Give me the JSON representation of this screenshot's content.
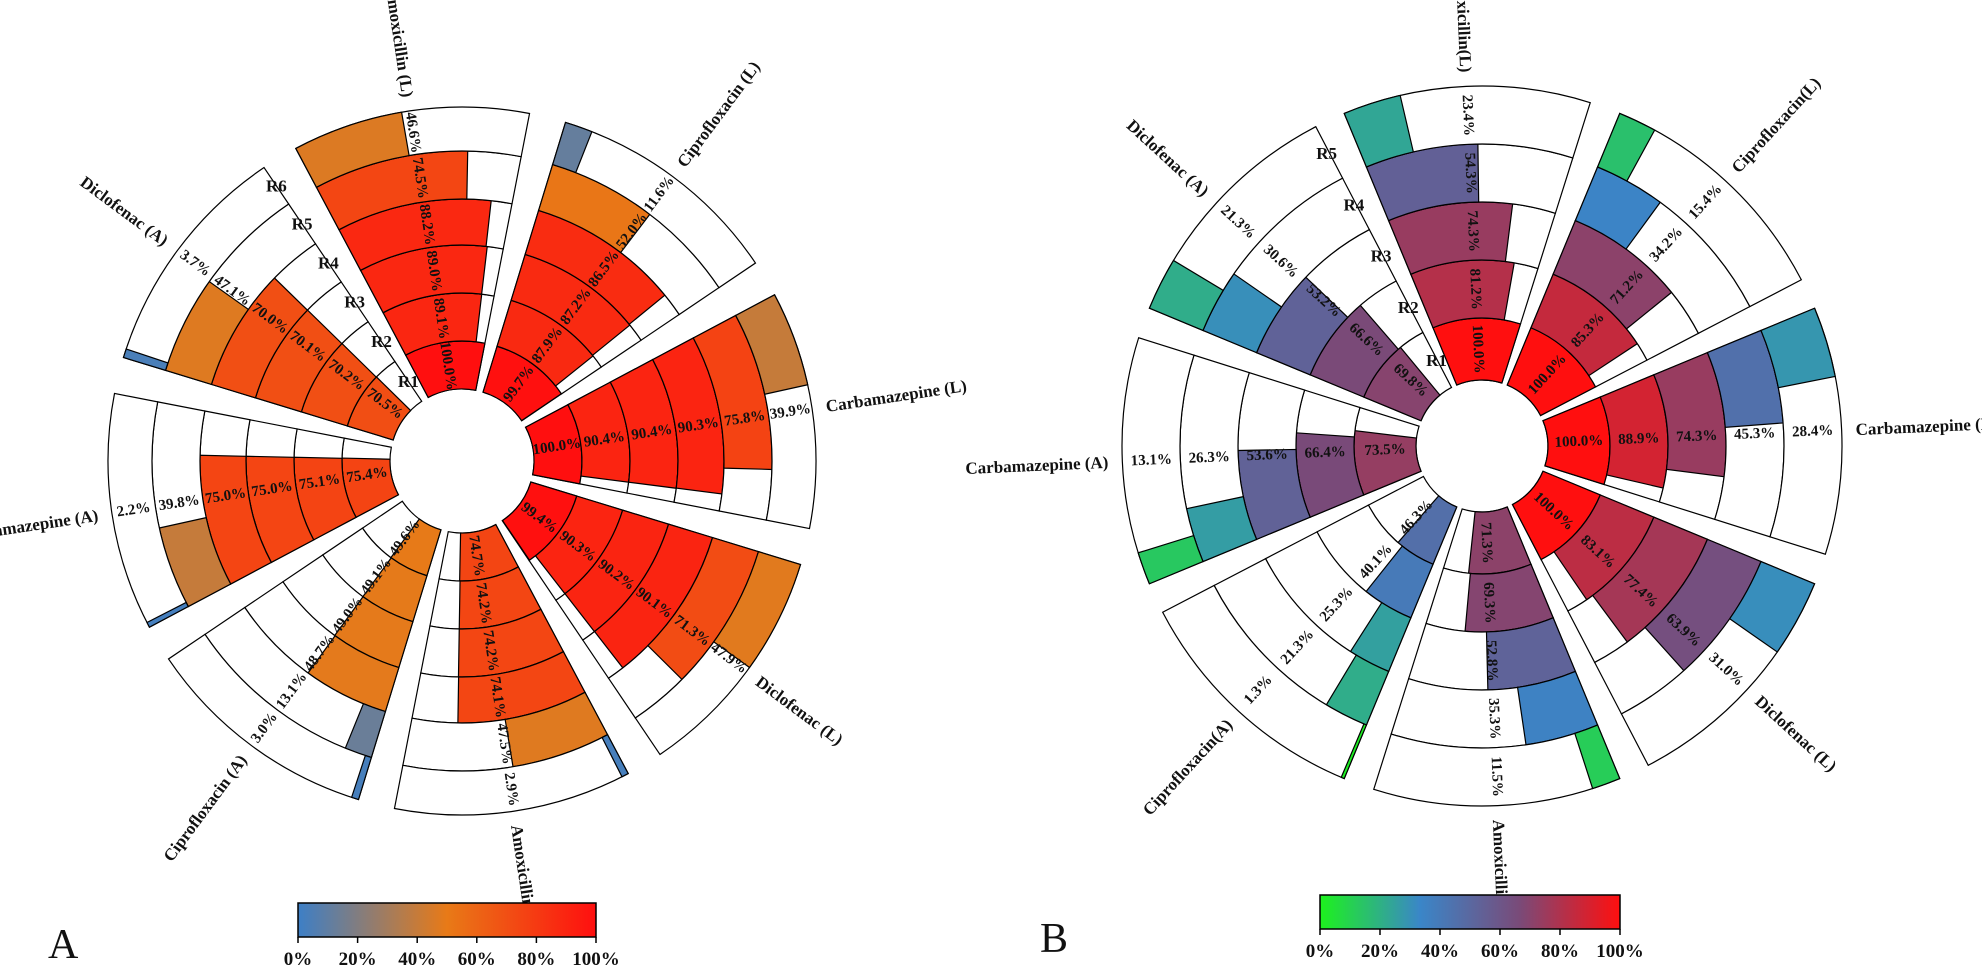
{
  "chart_data": [
    {
      "type": "radial-bar",
      "panel": "A",
      "rings": [
        "R1",
        "R2",
        "R3",
        "R4",
        "R5",
        "R6"
      ],
      "colorbar": {
        "stops": [
          "#3d7fc6",
          "#e87a17",
          "#ff0f0f"
        ],
        "ticks": [
          "0%",
          "20%",
          "40%",
          "60%",
          "80%",
          "100%"
        ]
      },
      "sectors": [
        {
          "label": "Amoxicillin (L)",
          "values": [
            100.0,
            89.1,
            89.0,
            88.2,
            74.5,
            46.6
          ],
          "text": [
            "100.0%",
            "89.1%",
            "89.0%",
            "88.2%",
            "74.5%",
            "46.6%"
          ]
        },
        {
          "label": "Ciprofloxacin (L)",
          "values": [
            99.7,
            87.9,
            87.2,
            86.5,
            52.0,
            11.6
          ],
          "text": [
            "99.7%",
            "87.9%",
            "87.2%",
            "86.5%",
            "52.0%",
            "11.6%"
          ]
        },
        {
          "label": "Carbamazepine (L)",
          "values": [
            100.0,
            90.4,
            90.4,
            90.3,
            75.8,
            39.9
          ],
          "text": [
            "100.0%",
            "90.4%",
            "90.4%",
            "90.3%",
            "75.8%",
            "39.9%"
          ]
        },
        {
          "label": "Diclofenac (L)",
          "values": [
            99.4,
            90.3,
            90.2,
            90.1,
            71.3,
            47.9
          ],
          "text": [
            "99.4%",
            "90.3%",
            "90.2%",
            "90.1%",
            "71.3%",
            "47.9%"
          ]
        },
        {
          "label": "Amoxicillin (A)",
          "values": [
            74.7,
            74.2,
            74.2,
            74.1,
            47.5,
            2.9
          ],
          "text": [
            "74.7%",
            "74.2%",
            "74.2%",
            "74.1%",
            "47.5%",
            "2.9%"
          ]
        },
        {
          "label": "Ciprofloxacin (A)",
          "values": [
            49.6,
            49.1,
            49.0,
            48.7,
            13.1,
            3.0
          ],
          "text": [
            "49.6%",
            "49.1%",
            "49.0%",
            "48.7%",
            "13.1%",
            "3.0%"
          ]
        },
        {
          "label": "Carbamazepine (A)",
          "values": [
            75.4,
            75.1,
            75.0,
            75.0,
            39.8,
            2.2
          ],
          "text": [
            "75.4%",
            "75.1%",
            "75.0%",
            "75.0%",
            "39.8%",
            "2.2%"
          ]
        },
        {
          "label": "Diclofenac (A)",
          "values": [
            70.5,
            70.2,
            70.1,
            70.0,
            47.1,
            3.7
          ],
          "text": [
            "70.5%",
            "70.2%",
            "70.1%",
            "70.0%",
            "47.1%",
            "3.7%"
          ]
        }
      ]
    },
    {
      "type": "radial-bar",
      "panel": "B",
      "rings": [
        "R1",
        "R2",
        "R3",
        "R4",
        "R5"
      ],
      "colorbar": {
        "stops": [
          "#1df21d",
          "#3a86c8",
          "#7a4a78",
          "#ff0f0f"
        ],
        "ticks": [
          "0%",
          "20%",
          "40%",
          "60%",
          "80%",
          "100%"
        ]
      },
      "sectors": [
        {
          "label": "Amoxicillin(L)",
          "values": [
            100.0,
            81.2,
            74.3,
            54.3,
            23.4
          ],
          "text": [
            "100.0%",
            "81.2%",
            "74.3%",
            "54.3%",
            "23.4%"
          ]
        },
        {
          "label": "Ciprofloxacin(L)",
          "values": [
            100.0,
            85.3,
            71.2,
            34.2,
            15.4
          ],
          "text": [
            "100.0%",
            "85.3%",
            "71.2%",
            "34.2%",
            "15.4%"
          ]
        },
        {
          "label": "Carbamazepine (L)",
          "values": [
            100.0,
            88.9,
            74.3,
            45.3,
            28.4
          ],
          "text": [
            "100.0%",
            "88.9%",
            "74.3%",
            "45.3%",
            "28.4%"
          ]
        },
        {
          "label": "Diclofenac (L)",
          "values": [
            100.0,
            83.1,
            77.4,
            63.9,
            31.0
          ],
          "text": [
            "100.0%",
            "83.1%",
            "77.4%",
            "63.9%",
            "31.0%"
          ]
        },
        {
          "label": "Amoxicillin(A)",
          "values": [
            71.3,
            69.3,
            52.8,
            35.3,
            11.5
          ],
          "text": [
            "71.3%",
            "69.3%",
            "52.8%",
            "35.3%",
            "11.5%"
          ]
        },
        {
          "label": "Ciprofloxacin(A)",
          "values": [
            46.3,
            40.1,
            25.3,
            21.3,
            1.3
          ],
          "text": [
            "46.3%",
            "40.1%",
            "25.3%",
            "21.3%",
            "1.3%"
          ]
        },
        {
          "label": "Carbamazepine (A)",
          "values": [
            73.5,
            66.4,
            53.6,
            26.3,
            13.1
          ],
          "text": [
            "73.5%",
            "66.4%",
            "53.6%",
            "26.3%",
            "13.1%"
          ]
        },
        {
          "label": "Diclofenac (A)",
          "values": [
            69.8,
            66.6,
            53.2,
            30.6,
            21.3
          ],
          "text": [
            "69.8%",
            "66.6%",
            "53.2%",
            "30.6%",
            "21.3%"
          ]
        }
      ]
    }
  ]
}
